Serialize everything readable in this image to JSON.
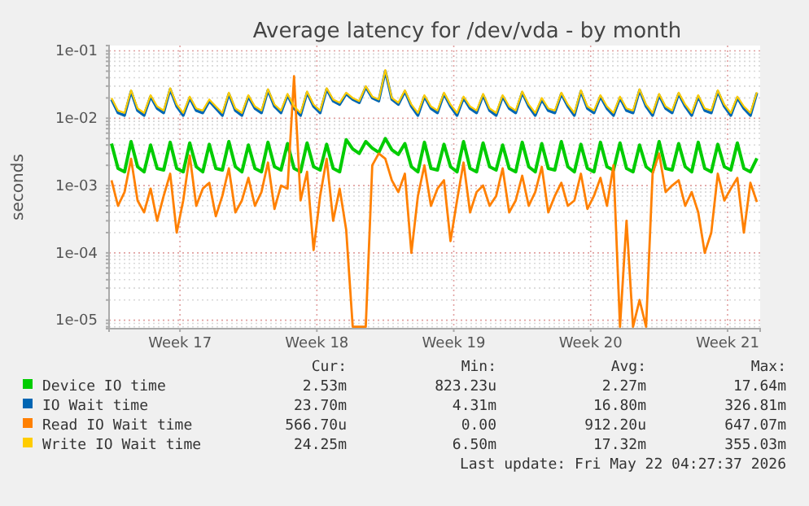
{
  "chart_data": {
    "type": "line",
    "title": "Average latency for /dev/vda - by month",
    "ylabel": "seconds",
    "log": true,
    "grid": true,
    "legend": "bottom",
    "line_style": "solid",
    "marker": "none",
    "xlim": [
      "2026-04-18T21:00",
      "2026-05-22T04:00"
    ],
    "xticks": [
      {
        "value": "2026-04-22T12:00",
        "label": "Week 17"
      },
      {
        "value": "2026-04-29T12:00",
        "label": "Week 18"
      },
      {
        "value": "2026-05-06T12:00",
        "label": "Week 19"
      },
      {
        "value": "2026-05-13T12:00",
        "label": "Week 20"
      },
      {
        "value": "2026-05-20T12:00",
        "label": "Week 21"
      }
    ],
    "ylim": [
      7.5e-06,
      0.12
    ],
    "yticks": [
      {
        "value": 1e-05,
        "label": "1e-05"
      },
      {
        "value": 0.0001,
        "label": "1e-04"
      },
      {
        "value": 0.001,
        "label": "1e-03"
      },
      {
        "value": 0.01,
        "label": "1e-02"
      },
      {
        "value": 0.1,
        "label": "1e-01"
      },
      {
        "value": 8e-06,
        "label": null
      },
      {
        "value": 9e-06,
        "label": null
      },
      {
        "value": 2e-05,
        "label": null
      },
      {
        "value": 3e-05,
        "label": null
      },
      {
        "value": 4e-05,
        "label": null
      },
      {
        "value": 5e-05,
        "label": null
      },
      {
        "value": 6e-05,
        "label": null
      },
      {
        "value": 7e-05,
        "label": null
      },
      {
        "value": 8e-05,
        "label": null
      },
      {
        "value": 9e-05,
        "label": null
      },
      {
        "value": 0.0002,
        "label": null
      },
      {
        "value": 0.0003,
        "label": null
      },
      {
        "value": 0.0004,
        "label": null
      },
      {
        "value": 0.0005,
        "label": null
      },
      {
        "value": 0.0006,
        "label": null
      },
      {
        "value": 0.0007,
        "label": null
      },
      {
        "value": 0.0008,
        "label": null
      },
      {
        "value": 0.0009,
        "label": null
      },
      {
        "value": 0.002,
        "label": null
      },
      {
        "value": 0.003,
        "label": null
      },
      {
        "value": 0.004,
        "label": null
      },
      {
        "value": 0.005,
        "label": null
      },
      {
        "value": 0.006,
        "label": null
      },
      {
        "value": 0.007,
        "label": null
      },
      {
        "value": 0.008,
        "label": null
      },
      {
        "value": 0.009,
        "label": null
      },
      {
        "value": 0.02,
        "label": null
      },
      {
        "value": 0.03,
        "label": null
      },
      {
        "value": 0.04,
        "label": null
      },
      {
        "value": 0.05,
        "label": null
      },
      {
        "value": 0.06,
        "label": null
      },
      {
        "value": 0.07,
        "label": null
      },
      {
        "value": 0.08,
        "label": null
      },
      {
        "value": 0.09,
        "label": null
      }
    ],
    "x": [
      "2026-04-19T00:00",
      "2026-04-19T08:00",
      "2026-04-19T16:00",
      "2026-04-20T00:00",
      "2026-04-20T08:00",
      "2026-04-20T16:00",
      "2026-04-21T00:00",
      "2026-04-21T08:00",
      "2026-04-21T16:00",
      "2026-04-22T00:00",
      "2026-04-22T08:00",
      "2026-04-22T16:00",
      "2026-04-23T00:00",
      "2026-04-23T08:00",
      "2026-04-23T16:00",
      "2026-04-24T00:00",
      "2026-04-24T08:00",
      "2026-04-24T16:00",
      "2026-04-25T00:00",
      "2026-04-25T08:00",
      "2026-04-25T16:00",
      "2026-04-26T00:00",
      "2026-04-26T08:00",
      "2026-04-26T16:00",
      "2026-04-27T00:00",
      "2026-04-27T08:00",
      "2026-04-27T16:00",
      "2026-04-28T00:00",
      "2026-04-28T08:00",
      "2026-04-28T16:00",
      "2026-04-29T00:00",
      "2026-04-29T08:00",
      "2026-04-29T16:00",
      "2026-04-30T00:00",
      "2026-04-30T08:00",
      "2026-04-30T16:00",
      "2026-05-01T00:00",
      "2026-05-01T08:00",
      "2026-05-01T16:00",
      "2026-05-02T00:00",
      "2026-05-02T08:00",
      "2026-05-02T16:00",
      "2026-05-03T00:00",
      "2026-05-03T08:00",
      "2026-05-03T16:00",
      "2026-05-04T00:00",
      "2026-05-04T08:00",
      "2026-05-04T16:00",
      "2026-05-05T00:00",
      "2026-05-05T08:00",
      "2026-05-05T16:00",
      "2026-05-06T00:00",
      "2026-05-06T08:00",
      "2026-05-06T16:00",
      "2026-05-07T00:00",
      "2026-05-07T08:00",
      "2026-05-07T16:00",
      "2026-05-08T00:00",
      "2026-05-08T08:00",
      "2026-05-08T16:00",
      "2026-05-09T00:00",
      "2026-05-09T08:00",
      "2026-05-09T16:00",
      "2026-05-10T00:00",
      "2026-05-10T08:00",
      "2026-05-10T16:00",
      "2026-05-11T00:00",
      "2026-05-11T08:00",
      "2026-05-11T16:00",
      "2026-05-12T00:00",
      "2026-05-12T08:00",
      "2026-05-12T16:00",
      "2026-05-13T00:00",
      "2026-05-13T08:00",
      "2026-05-13T16:00",
      "2026-05-14T00:00",
      "2026-05-14T08:00",
      "2026-05-14T16:00",
      "2026-05-15T00:00",
      "2026-05-15T08:00",
      "2026-05-15T16:00",
      "2026-05-16T00:00",
      "2026-05-16T08:00",
      "2026-05-16T16:00",
      "2026-05-17T00:00",
      "2026-05-17T08:00",
      "2026-05-17T16:00",
      "2026-05-18T00:00",
      "2026-05-18T08:00",
      "2026-05-18T16:00",
      "2026-05-19T00:00",
      "2026-05-19T08:00",
      "2026-05-19T16:00",
      "2026-05-20T00:00",
      "2026-05-20T08:00",
      "2026-05-20T16:00",
      "2026-05-21T00:00",
      "2026-05-21T08:00",
      "2026-05-21T16:00",
      "2026-05-22T00:00"
    ],
    "series": [
      {
        "name": "Device IO time",
        "color": "#00cc00",
        "values": [
          0.0042,
          0.0018,
          0.0016,
          0.0045,
          0.0019,
          0.0016,
          0.004,
          0.0018,
          0.0017,
          0.0044,
          0.0018,
          0.0016,
          0.0043,
          0.0019,
          0.0016,
          0.0041,
          0.0018,
          0.0017,
          0.0045,
          0.0019,
          0.0016,
          0.004,
          0.0018,
          0.0016,
          0.0044,
          0.0019,
          0.0017,
          0.0042,
          0.0018,
          0.0016,
          0.0043,
          0.0019,
          0.0017,
          0.0041,
          0.0018,
          0.0016,
          0.0048,
          0.0035,
          0.003,
          0.0045,
          0.0036,
          0.0031,
          0.005,
          0.0034,
          0.0029,
          0.0042,
          0.0019,
          0.0016,
          0.0044,
          0.0018,
          0.0017,
          0.0041,
          0.0019,
          0.0016,
          0.0045,
          0.0018,
          0.0016,
          0.0043,
          0.0019,
          0.0017,
          0.004,
          0.0018,
          0.0016,
          0.0044,
          0.0019,
          0.0016,
          0.0042,
          0.0018,
          0.0017,
          0.0045,
          0.0019,
          0.0016,
          0.0041,
          0.0018,
          0.0016,
          0.0044,
          0.0019,
          0.0017,
          0.0043,
          0.0018,
          0.0016,
          0.004,
          0.0019,
          0.0016,
          0.0045,
          0.0018,
          0.0017,
          0.0042,
          0.0019,
          0.0016,
          0.0044,
          0.0018,
          0.0016,
          0.0041,
          0.0019,
          0.0017,
          0.0043,
          0.0018,
          0.0016,
          0.00253
        ]
      },
      {
        "name": "IO Wait time",
        "color": "#0066b3",
        "values": [
          0.019,
          0.012,
          0.011,
          0.025,
          0.013,
          0.011,
          0.021,
          0.014,
          0.012,
          0.027,
          0.015,
          0.011,
          0.02,
          0.013,
          0.012,
          0.018,
          0.014,
          0.011,
          0.023,
          0.013,
          0.011,
          0.021,
          0.014,
          0.012,
          0.026,
          0.015,
          0.012,
          0.022,
          0.014,
          0.011,
          0.024,
          0.015,
          0.012,
          0.027,
          0.018,
          0.016,
          0.023,
          0.019,
          0.017,
          0.029,
          0.02,
          0.018,
          0.05,
          0.019,
          0.016,
          0.025,
          0.015,
          0.011,
          0.021,
          0.014,
          0.012,
          0.023,
          0.015,
          0.011,
          0.02,
          0.014,
          0.012,
          0.022,
          0.013,
          0.011,
          0.021,
          0.014,
          0.012,
          0.024,
          0.015,
          0.011,
          0.019,
          0.013,
          0.012,
          0.023,
          0.015,
          0.011,
          0.025,
          0.014,
          0.012,
          0.021,
          0.014,
          0.011,
          0.02,
          0.013,
          0.012,
          0.026,
          0.015,
          0.011,
          0.022,
          0.014,
          0.012,
          0.023,
          0.015,
          0.011,
          0.021,
          0.013,
          0.012,
          0.025,
          0.015,
          0.011,
          0.02,
          0.014,
          0.011,
          0.0237
        ]
      },
      {
        "name": "Read IO Wait time",
        "color": "#ff8000",
        "values": [
          0.0012,
          0.0005,
          0.0008,
          0.0025,
          0.0006,
          0.0004,
          0.0009,
          0.0003,
          0.0007,
          0.0015,
          0.0002,
          0.0006,
          0.0028,
          0.0005,
          0.0009,
          0.0011,
          0.00035,
          0.0007,
          0.0018,
          0.0004,
          0.0006,
          0.0013,
          0.0005,
          0.0008,
          0.0022,
          0.00045,
          0.001,
          0.0009,
          0.042,
          0.0006,
          0.0016,
          0.00011,
          0.0007,
          0.0025,
          0.0003,
          0.0009,
          0.00022,
          8e-06,
          8e-06,
          8e-06,
          0.002,
          0.003,
          0.0025,
          0.0012,
          0.0008,
          0.0015,
          0.0001,
          0.0007,
          0.002,
          0.0005,
          0.0009,
          0.0012,
          0.00015,
          0.0006,
          0.0022,
          0.0004,
          0.0008,
          0.001,
          0.0005,
          0.0007,
          0.0018,
          0.0004,
          0.0006,
          0.0014,
          0.0005,
          0.0008,
          0.0019,
          0.0004,
          0.0007,
          0.0011,
          0.0005,
          0.0006,
          0.0015,
          0.00045,
          0.0007,
          0.0013,
          0.0005,
          0.002,
          8e-06,
          0.0003,
          8e-06,
          2e-05,
          8e-06,
          0.0015,
          0.003,
          0.0008,
          0.001,
          0.0012,
          0.0005,
          0.0008,
          0.0004,
          0.0001,
          0.0002,
          0.0015,
          0.0006,
          0.0009,
          0.0013,
          0.0002,
          0.0011,
          0.00057
        ]
      },
      {
        "name": "Write IO Wait time",
        "color": "#ffcc00",
        "values": [
          0.02,
          0.013,
          0.012,
          0.026,
          0.014,
          0.012,
          0.022,
          0.015,
          0.013,
          0.028,
          0.016,
          0.012,
          0.021,
          0.014,
          0.013,
          0.019,
          0.015,
          0.012,
          0.024,
          0.014,
          0.012,
          0.022,
          0.015,
          0.013,
          0.027,
          0.016,
          0.013,
          0.023,
          0.015,
          0.012,
          0.025,
          0.016,
          0.013,
          0.028,
          0.019,
          0.017,
          0.024,
          0.02,
          0.018,
          0.03,
          0.021,
          0.019,
          0.052,
          0.02,
          0.017,
          0.026,
          0.016,
          0.012,
          0.022,
          0.015,
          0.013,
          0.024,
          0.016,
          0.012,
          0.021,
          0.015,
          0.013,
          0.023,
          0.014,
          0.012,
          0.022,
          0.015,
          0.013,
          0.025,
          0.016,
          0.012,
          0.02,
          0.014,
          0.013,
          0.024,
          0.016,
          0.012,
          0.026,
          0.015,
          0.013,
          0.022,
          0.015,
          0.012,
          0.021,
          0.014,
          0.013,
          0.027,
          0.016,
          0.012,
          0.023,
          0.015,
          0.013,
          0.024,
          0.016,
          0.012,
          0.022,
          0.014,
          0.013,
          0.026,
          0.016,
          0.012,
          0.021,
          0.015,
          0.012,
          0.0243
        ]
      }
    ],
    "annotations": [
      "Cur:",
      "Min:",
      "Avg:",
      "Max:",
      "2.53m",
      "823.23u",
      "2.27m",
      "17.64m",
      "23.70m",
      "4.31m",
      "16.80m",
      "326.81m",
      "566.70u",
      "0.00",
      "912.20u",
      "647.07m",
      "24.25m",
      "6.50m",
      "17.32m",
      "355.03m",
      "Last update: Fri May 22 04:27:37 2026"
    ]
  }
}
